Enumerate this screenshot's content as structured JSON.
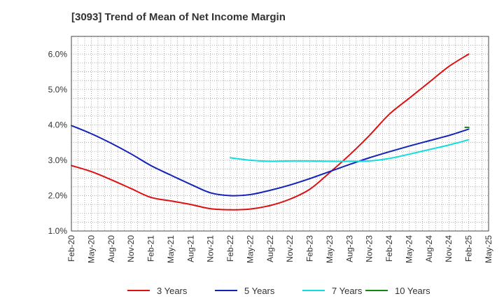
{
  "chart_data": {
    "type": "line",
    "title": "[3093]  Trend of Mean of Net Income Margin",
    "xlabel": "",
    "ylabel": "",
    "ylim": [
      1.0,
      6.5
    ],
    "y_ticks": [
      "1.0%",
      "2.0%",
      "3.0%",
      "4.0%",
      "5.0%",
      "6.0%"
    ],
    "y_tick_values": [
      1.0,
      2.0,
      3.0,
      4.0,
      5.0,
      6.0
    ],
    "x_ticks": [
      "Feb-20",
      "May-20",
      "Aug-20",
      "Nov-20",
      "Feb-21",
      "May-21",
      "Aug-21",
      "Nov-21",
      "Feb-22",
      "May-22",
      "Aug-22",
      "Nov-22",
      "Feb-23",
      "May-23",
      "Aug-23",
      "Nov-23",
      "Feb-24",
      "May-24",
      "Aug-24",
      "Nov-24",
      "Feb-25",
      "May-25"
    ],
    "grid": true,
    "legend_position": "bottom",
    "series": [
      {
        "name": "3 Years",
        "color": "#dd1111",
        "x": [
          "Feb-20",
          "May-20",
          "Aug-20",
          "Nov-20",
          "Feb-21",
          "May-21",
          "Aug-21",
          "Nov-21",
          "Feb-22",
          "May-22",
          "Aug-22",
          "Nov-22",
          "Feb-23",
          "May-23",
          "Aug-23",
          "Nov-23",
          "Feb-24",
          "May-24",
          "Aug-24",
          "Nov-24",
          "Feb-25"
        ],
        "values": [
          2.85,
          2.68,
          2.45,
          2.2,
          1.95,
          1.85,
          1.75,
          1.63,
          1.6,
          1.62,
          1.72,
          1.9,
          2.18,
          2.65,
          3.15,
          3.7,
          4.3,
          4.75,
          5.2,
          5.65,
          6.0
        ]
      },
      {
        "name": "5 Years",
        "color": "#1122bb",
        "x": [
          "Feb-20",
          "May-20",
          "Aug-20",
          "Nov-20",
          "Feb-21",
          "May-21",
          "Aug-21",
          "Nov-21",
          "Feb-22",
          "May-22",
          "Aug-22",
          "Nov-22",
          "Feb-23",
          "May-23",
          "Aug-23",
          "Nov-23",
          "Feb-24",
          "May-24",
          "Aug-24",
          "Nov-24",
          "Feb-25"
        ],
        "values": [
          3.98,
          3.75,
          3.48,
          3.18,
          2.85,
          2.58,
          2.32,
          2.08,
          2.0,
          2.03,
          2.15,
          2.3,
          2.48,
          2.68,
          2.88,
          3.07,
          3.24,
          3.4,
          3.55,
          3.7,
          3.88
        ]
      },
      {
        "name": "7 Years",
        "color": "#11dddd",
        "x": [
          "Feb-22",
          "May-22",
          "Aug-22",
          "Nov-22",
          "Feb-23",
          "May-23",
          "Aug-23",
          "Nov-23",
          "Feb-24",
          "May-24",
          "Aug-24",
          "Nov-24",
          "Feb-25"
        ],
        "values": [
          3.07,
          3.0,
          2.97,
          2.98,
          2.98,
          2.97,
          2.97,
          2.98,
          3.05,
          3.17,
          3.3,
          3.43,
          3.58
        ]
      },
      {
        "name": "10 Years",
        "color": "#118811",
        "x": [
          "Feb-25"
        ],
        "values": [
          3.93
        ]
      }
    ]
  }
}
